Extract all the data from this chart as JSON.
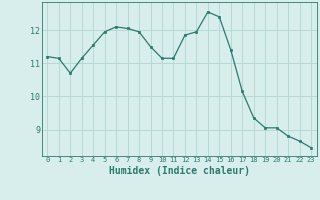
{
  "x": [
    0,
    1,
    2,
    3,
    4,
    5,
    6,
    7,
    8,
    9,
    10,
    11,
    12,
    13,
    14,
    15,
    16,
    17,
    18,
    19,
    20,
    21,
    22,
    23
  ],
  "y": [
    11.2,
    11.15,
    10.7,
    11.15,
    11.55,
    11.95,
    12.1,
    12.05,
    11.95,
    11.5,
    11.15,
    11.15,
    11.85,
    11.95,
    12.55,
    12.4,
    11.4,
    10.15,
    9.35,
    9.05,
    9.05,
    8.8,
    8.65,
    8.45
  ],
  "line_color": "#2a7a6f",
  "marker": "s",
  "marker_size": 2,
  "bg_color": "#d8eeec",
  "grid_color": "#b8d8d4",
  "tick_label_color": "#2a7a6f",
  "xlabel": "Humidex (Indice chaleur)",
  "xlabel_color": "#2a7a6f",
  "xlabel_fontsize": 7,
  "ylabel_ticks": [
    9,
    10,
    11,
    12
  ],
  "ylim": [
    8.2,
    12.85
  ],
  "xlim": [
    -0.5,
    23.5
  ],
  "xtick_fontsize": 5,
  "ytick_fontsize": 6
}
